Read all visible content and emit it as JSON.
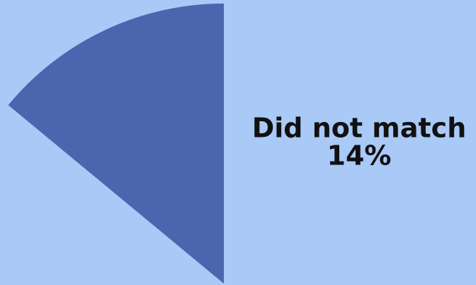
{
  "chart_data": {
    "type": "pie",
    "categories": [
      "Did not match"
    ],
    "values": [
      14
    ],
    "value_labels": [
      "14%"
    ],
    "colors": [
      "#4a66ae"
    ]
  }
}
